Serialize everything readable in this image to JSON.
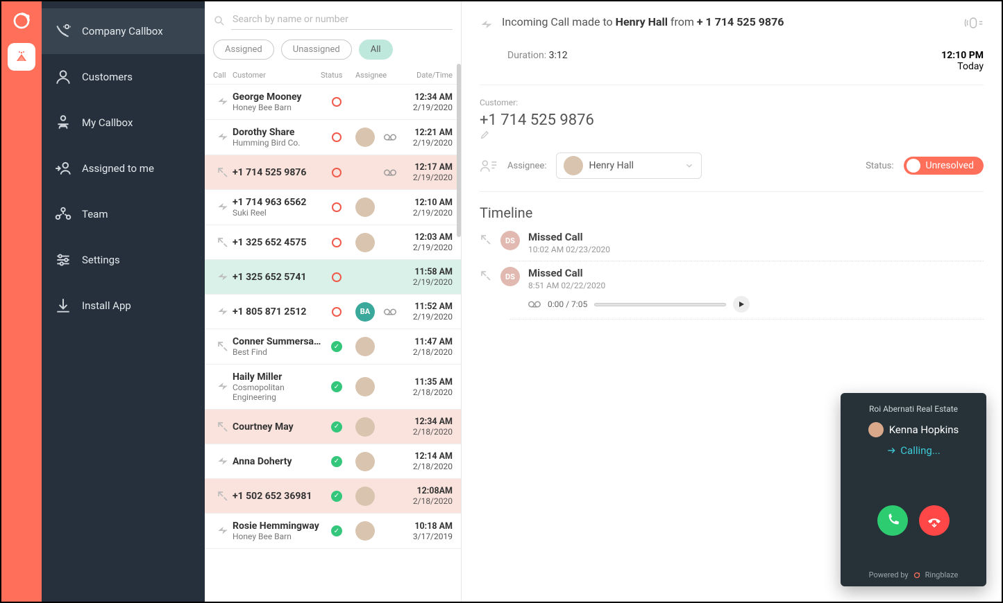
{
  "colors": {
    "accent": "#ff6f5a",
    "sidebar": "#25303c",
    "green": "#34c77b",
    "teal": "#3aa99b",
    "pink_row": "#fbe3dd",
    "green_row": "#d9f1e9"
  },
  "search": {
    "placeholder": "Search by name or number"
  },
  "filters": {
    "assigned": "Assigned",
    "unassigned": "Unassigned",
    "all": "All"
  },
  "nav": [
    {
      "id": "company-callbox",
      "label": "Company Callbox",
      "active": true
    },
    {
      "id": "customers",
      "label": "Customers"
    },
    {
      "id": "my-callbox",
      "label": "My Callbox"
    },
    {
      "id": "assigned-to-me",
      "label": "Assigned to me"
    },
    {
      "id": "team",
      "label": "Team"
    },
    {
      "id": "settings",
      "label": "Settings"
    },
    {
      "id": "install-app",
      "label": "Install App"
    }
  ],
  "list_header": {
    "call": "Call",
    "customer": "Customer",
    "status": "Status",
    "assignee": "Assignee",
    "datetime": "Date/Time"
  },
  "calls": [
    {
      "dir": "out",
      "name": "George Mooney",
      "company": "Honey Bee Barn",
      "status": "open",
      "assignee": null,
      "vm": false,
      "time": "12:34 AM",
      "date": "2/19/2020",
      "hl": ""
    },
    {
      "dir": "out",
      "name": "Dorothy Share",
      "company": "Humming Bird Co.",
      "status": "open",
      "assignee": {
        "type": "photo"
      },
      "vm": true,
      "time": "12:21 AM",
      "date": "2/19/2020",
      "hl": ""
    },
    {
      "dir": "missed",
      "name": "+1 714 525 9876",
      "company": "",
      "status": "open",
      "assignee": null,
      "vm": true,
      "time": "12:17 AM",
      "date": "2/19/2020",
      "hl": "pink"
    },
    {
      "dir": "out",
      "name": "+1 714 963 6562",
      "company": "Suki Reel",
      "status": "open",
      "assignee": {
        "type": "photo"
      },
      "vm": false,
      "time": "12:10 AM",
      "date": "2/19/2020",
      "hl": ""
    },
    {
      "dir": "missed",
      "name": "+1 325 652 4575",
      "company": "",
      "status": "open",
      "assignee": {
        "type": "photo"
      },
      "vm": false,
      "time": "12:03 AM",
      "date": "2/19/2020",
      "hl": ""
    },
    {
      "dir": "out",
      "name": "+1 325 652 5741",
      "company": "",
      "status": "open",
      "assignee": null,
      "vm": false,
      "time": "11:58 AM",
      "date": "2/19/2020",
      "hl": "green"
    },
    {
      "dir": "out",
      "name": "+1 805 871 2512",
      "company": "",
      "status": "open",
      "assignee": {
        "type": "initials",
        "text": "BA",
        "color": "teal"
      },
      "vm": true,
      "time": "11:52 AM",
      "date": "2/19/2020",
      "hl": ""
    },
    {
      "dir": "missed",
      "name": "Conner Summersault",
      "company": "Best Find",
      "status": "done",
      "assignee": {
        "type": "photo"
      },
      "vm": false,
      "time": "11:47 AM",
      "date": "2/18/2020",
      "hl": ""
    },
    {
      "dir": "out",
      "name": "Haily  Miller",
      "company": "Cosmopolitan Engineering",
      "status": "done",
      "assignee": {
        "type": "photo"
      },
      "vm": false,
      "time": "11:35 AM",
      "date": "2/18/2020",
      "hl": ""
    },
    {
      "dir": "missed",
      "name": "Courtney May",
      "company": "",
      "status": "done",
      "assignee": {
        "type": "photo"
      },
      "vm": false,
      "time": "12:34 AM",
      "date": "2/18/2020",
      "hl": "pink"
    },
    {
      "dir": "out",
      "name": "Anna Doherty",
      "company": "",
      "status": "done",
      "assignee": {
        "type": "photo"
      },
      "vm": false,
      "time": "12:14 AM",
      "date": "2/18/2020",
      "hl": ""
    },
    {
      "dir": "missed",
      "name": "+1 502 652 36981",
      "company": "",
      "status": "done",
      "assignee": {
        "type": "photo"
      },
      "vm": false,
      "time": "12:08AM",
      "date": "2/18/2020",
      "hl": "pink"
    },
    {
      "dir": "out",
      "name": "Rosie Hemmingway",
      "company": "Honey Bee Barn",
      "status": "done",
      "assignee": {
        "type": "photo"
      },
      "vm": false,
      "time": "10:18 AM",
      "date": "3/17/2019",
      "hl": ""
    }
  ],
  "detail": {
    "header": {
      "prefix": "Incoming Call made to ",
      "name": "Henry Hall",
      "mid": " from ",
      "number": "+ 1 714 525 9876"
    },
    "duration_label": "Duration:",
    "duration": "3:12",
    "time": "12:10 PM",
    "day": "Today",
    "customer_label": "Customer:",
    "customer_phone": "+1 714 525 9876",
    "assignee_label": "Assignee:",
    "assignee_name": "Henry Hall",
    "status_label": "Status:",
    "status_value": "Unresolved",
    "timeline_title": "Timeline",
    "timeline": [
      {
        "initials": "DS",
        "title": "Missed Call",
        "sub": "10:02 AM 02/23/2020",
        "player": null
      },
      {
        "initials": "DS",
        "title": "Missed Call",
        "sub": "8:51 AM 02/22/2020",
        "player": {
          "pos": "0:00",
          "dur": "7:05"
        }
      }
    ]
  },
  "dialer": {
    "brand": "Roi Abernati Real Estate",
    "caller": "Kenna Hopkins",
    "state": "Calling...",
    "powered_by": "Powered by",
    "product": "Ringblaze"
  }
}
